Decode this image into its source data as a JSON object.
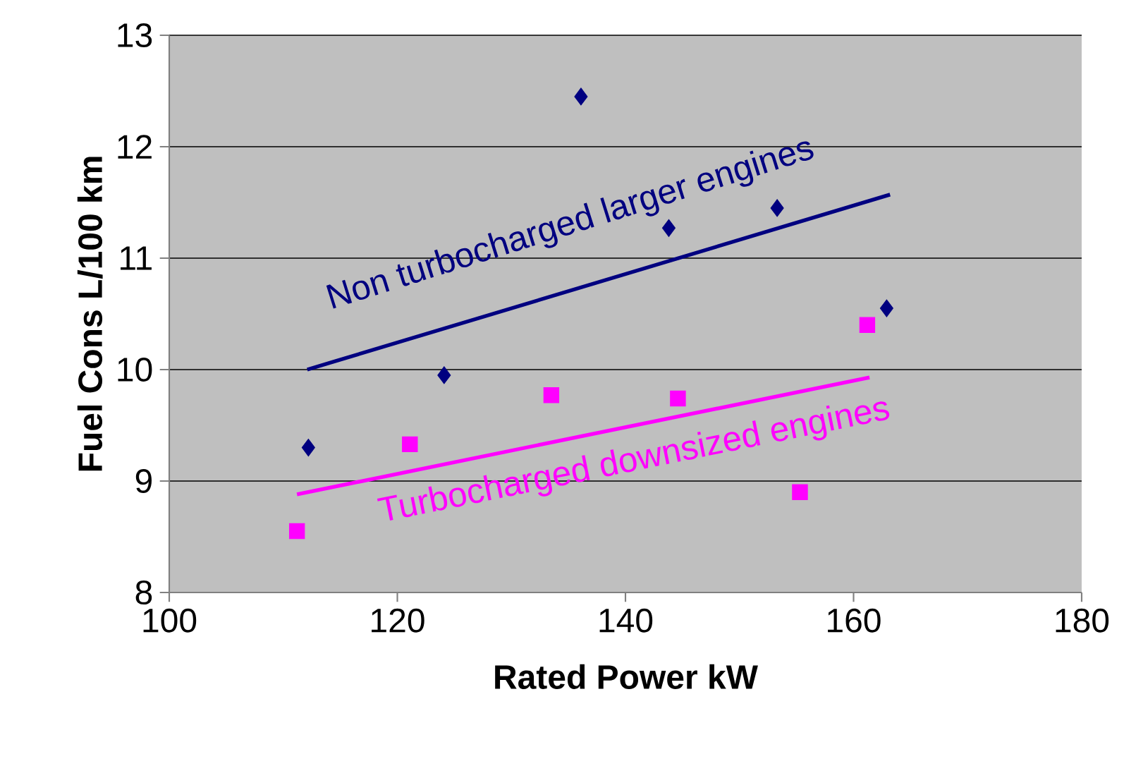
{
  "chart_data": {
    "type": "scatter",
    "xlabel": "Rated Power kW",
    "ylabel": "Fuel Cons L/100 km",
    "xlim": [
      100,
      180
    ],
    "xticks": [
      100,
      120,
      140,
      160,
      180
    ],
    "ylim": [
      8,
      13
    ],
    "yticks": [
      8,
      9,
      10,
      11,
      12,
      13
    ],
    "grid": "y",
    "series": [
      {
        "marker": "diamond",
        "color": "#000080",
        "x": [
          112.2,
          124.1,
          136.1,
          143.8,
          153.3,
          162.9
        ],
        "values": [
          9.3,
          9.95,
          12.45,
          11.27,
          11.45,
          10.55
        ]
      },
      {
        "marker": "square",
        "color": "#ff00ff",
        "x": [
          111.2,
          121.1,
          133.5,
          144.6,
          155.3,
          161.2
        ],
        "values": [
          8.55,
          9.33,
          9.77,
          9.74,
          8.9,
          10.4
        ]
      },
      {
        "type": "line",
        "marker": "none",
        "color": "#000080",
        "x": [
          112.1,
          163.2
        ],
        "values": [
          10.0,
          11.57
        ]
      },
      {
        "type": "line",
        "marker": "none",
        "color": "#ff00ff",
        "x": [
          111.2,
          161.4
        ],
        "values": [
          8.88,
          9.93
        ]
      }
    ],
    "annotations": [
      "Non turbocharged larger engines",
      "Turbocharged downsized engines"
    ]
  }
}
